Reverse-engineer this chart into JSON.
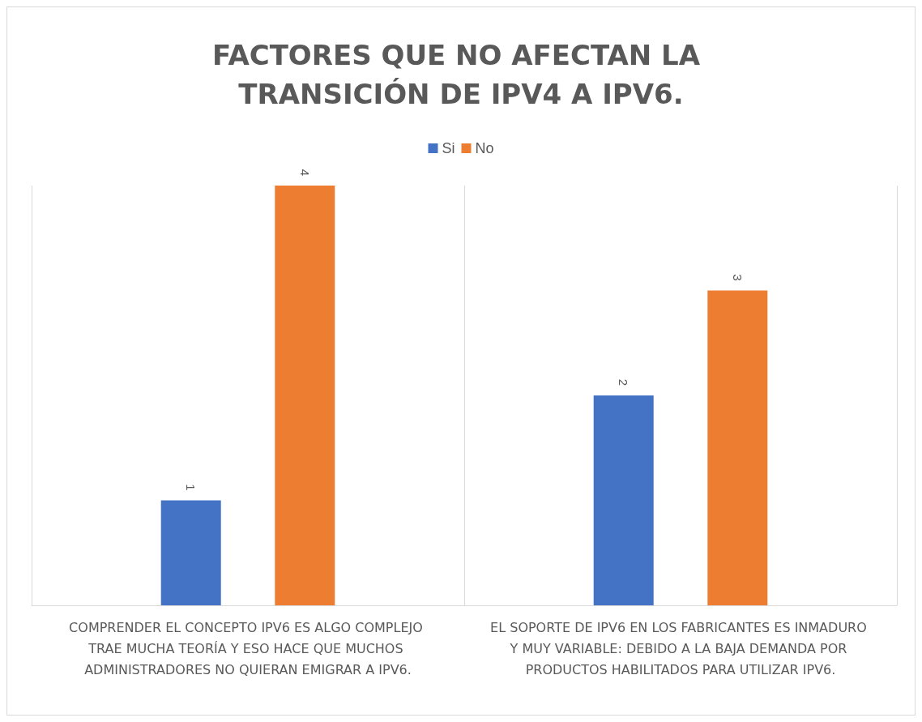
{
  "chart_data": {
    "type": "bar",
    "title": "FACTORES QUE NO AFECTAN LA TRANSICIÓN DE IPV4 A IPV6.",
    "categories": [
      "COMPRENDER EL CONCEPTO IPV6 ES ALGO COMPLEJO TRAE MUCHA TEORÍA Y ESO HACE QUE MUCHOS ADMINISTRADORES NO QUIERAN EMIGRAR A IPV6.",
      "EL SOPORTE DE IPV6 EN LOS FABRICANTES ES INMADURO Y MUY VARIABLE: DEBIDO A LA BAJA DEMANDA POR PRODUCTOS HABILITADOS PARA UTILIZAR IPV6."
    ],
    "series": [
      {
        "name": "Si",
        "color": "#4472c4",
        "values": [
          1,
          2
        ]
      },
      {
        "name": "No",
        "color": "#ed7d31",
        "values": [
          4,
          3
        ]
      }
    ],
    "data_labels": true,
    "legend": "top",
    "grid": "x",
    "tick_labels": "x"
  }
}
